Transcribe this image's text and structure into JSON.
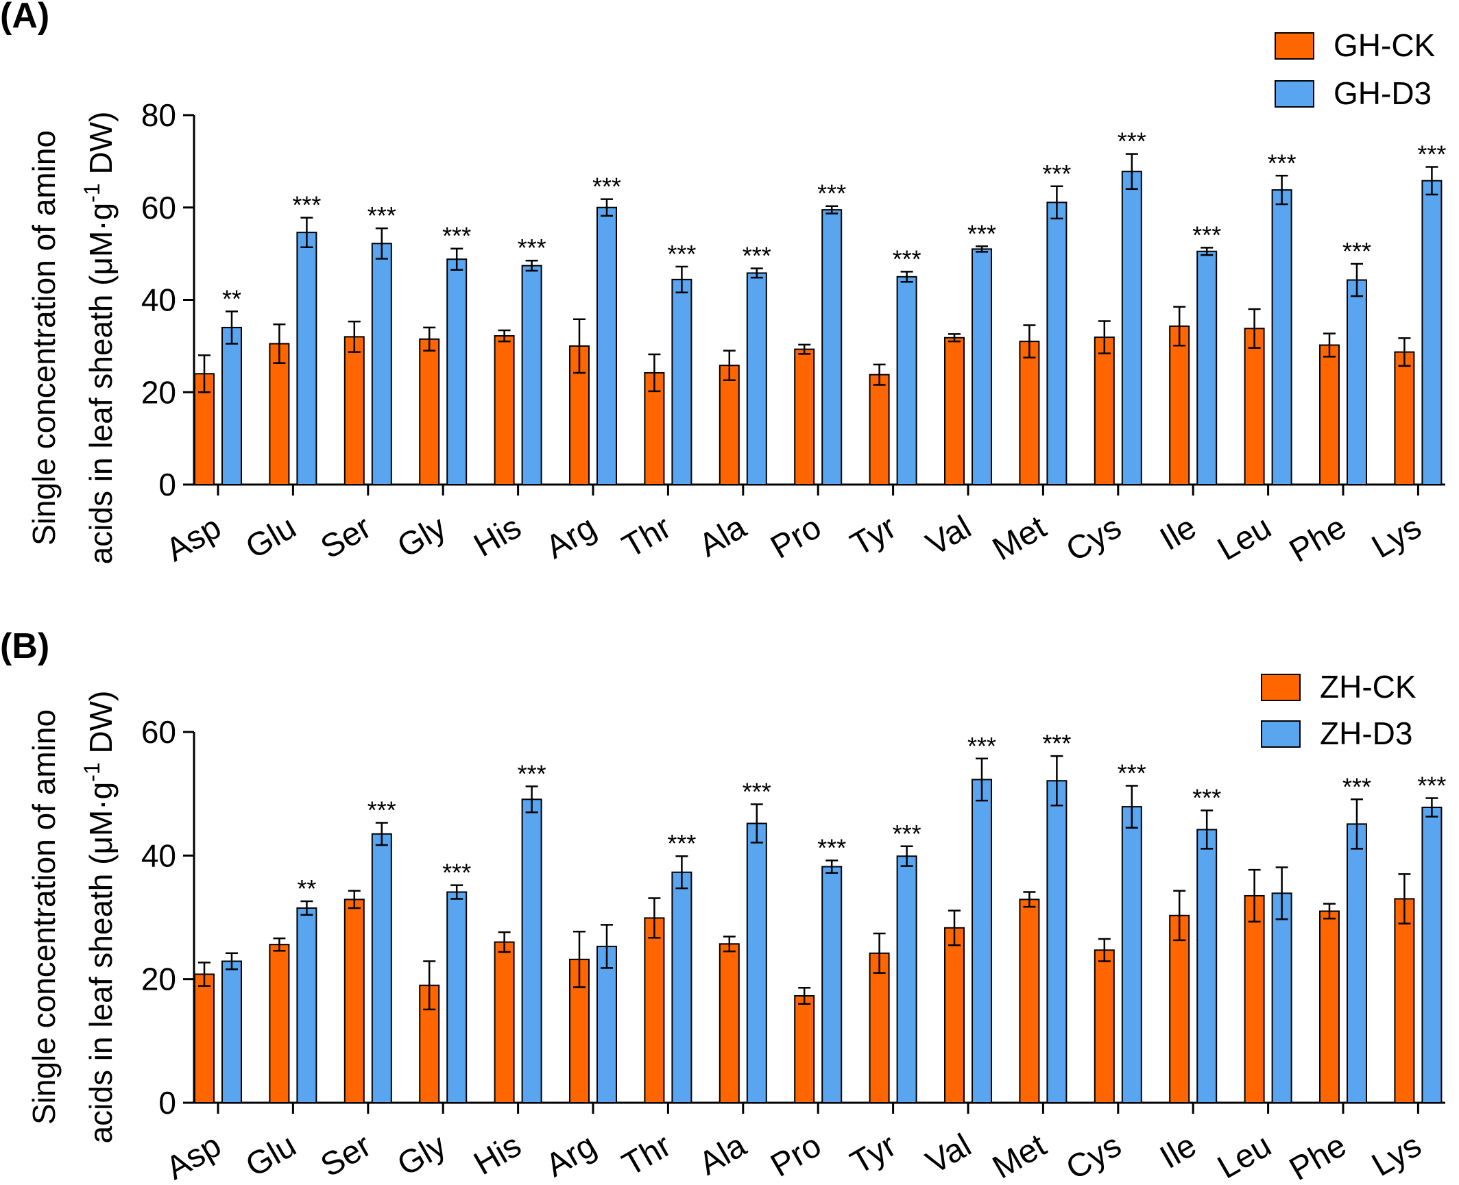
{
  "colors": {
    "ck": "#FF6600",
    "d3": "#5AA5F0"
  },
  "chart_data": [
    {
      "type": "bar",
      "panel_label": "(A)",
      "ylabel_line1": "Single concentration of amino",
      "ylabel_line2_pre": "acids in leaf sheath (μM·g",
      "ylabel_sup": "-1",
      "ylabel_line2_post": " DW)",
      "ylim": [
        0,
        80
      ],
      "yticks": [
        "0",
        "20",
        "40",
        "60",
        "80"
      ],
      "legend_position": "top-right",
      "categories": [
        "Asp",
        "Glu",
        "Ser",
        "Gly",
        "His",
        "Arg",
        "Thr",
        "Ala",
        "Pro",
        "Tyr",
        "Val",
        "Met",
        "Cys",
        "Ile",
        "Leu",
        "Phe",
        "Lys"
      ],
      "series": [
        {
          "name": "GH-CK",
          "values": [
            24,
            30.5,
            32,
            31.5,
            32.2,
            30,
            24.2,
            25.8,
            29.3,
            23.8,
            31.8,
            31,
            31.9,
            34.3,
            33.8,
            30.2,
            28.7
          ],
          "errors": [
            4,
            4.2,
            3.3,
            2.5,
            1.2,
            5.8,
            4,
            3.2,
            1,
            2.2,
            0.8,
            3.5,
            3.5,
            4.2,
            4.2,
            2.5,
            3
          ]
        },
        {
          "name": "GH-D3",
          "values": [
            34,
            54.6,
            52.2,
            48.8,
            47.4,
            60,
            44.4,
            45.8,
            59.5,
            45,
            51,
            61.1,
            67.8,
            50.5,
            63.8,
            44.3,
            65.8
          ],
          "errors": [
            3.5,
            3.2,
            3.3,
            2.3,
            1.1,
            1.8,
            2.8,
            1,
            0.8,
            1.1,
            0.6,
            3.5,
            3.8,
            0.8,
            3.1,
            3.5,
            3
          ]
        }
      ],
      "significance": [
        "**",
        "***",
        "***",
        "***",
        "***",
        "***",
        "***",
        "***",
        "***",
        "***",
        "***",
        "***",
        "***",
        "***",
        "***",
        "***",
        "***"
      ]
    },
    {
      "type": "bar",
      "panel_label": "(B)",
      "ylabel_line1": "Single concentration of amino",
      "ylabel_line2_pre": "acids in leaf sheath (μM·g",
      "ylabel_sup": "-1",
      "ylabel_line2_post": " DW)",
      "ylim": [
        0,
        60
      ],
      "yticks": [
        "0",
        "20",
        "40",
        "60"
      ],
      "legend_position": "top-right",
      "categories": [
        "Asp",
        "Glu",
        "Ser",
        "Gly",
        "His",
        "Arg",
        "Thr",
        "Ala",
        "Pro",
        "Tyr",
        "Val",
        "Met",
        "Cys",
        "Ile",
        "Leu",
        "Phe",
        "Lys"
      ],
      "series": [
        {
          "name": "ZH-CK",
          "values": [
            20.8,
            25.6,
            32.9,
            19,
            26,
            23.2,
            29.9,
            25.7,
            17.3,
            24.2,
            28.3,
            32.9,
            24.7,
            30.3,
            33.5,
            31,
            33
          ],
          "errors": [
            1.9,
            1,
            1.4,
            3.9,
            1.6,
            4.5,
            3.2,
            1.2,
            1.3,
            3.2,
            2.8,
            1.2,
            1.8,
            4,
            4.2,
            1.2,
            4
          ]
        },
        {
          "name": "ZH-D3",
          "values": [
            22.9,
            31.5,
            43.5,
            34.1,
            49.1,
            25.3,
            37.3,
            45.2,
            38.2,
            39.9,
            52.3,
            52.1,
            47.9,
            44.2,
            33.9,
            45.1,
            47.8
          ],
          "errors": [
            1.3,
            1.1,
            1.8,
            1.1,
            2.1,
            3.5,
            2.6,
            3.1,
            1,
            1.6,
            3.4,
            4,
            3.4,
            3.1,
            4.2,
            4,
            1.5
          ]
        }
      ],
      "significance": [
        "",
        "**",
        "***",
        "***",
        "***",
        "",
        "***",
        "***",
        "***",
        "***",
        "***",
        "***",
        "***",
        "***",
        "",
        "***",
        "***"
      ]
    }
  ]
}
